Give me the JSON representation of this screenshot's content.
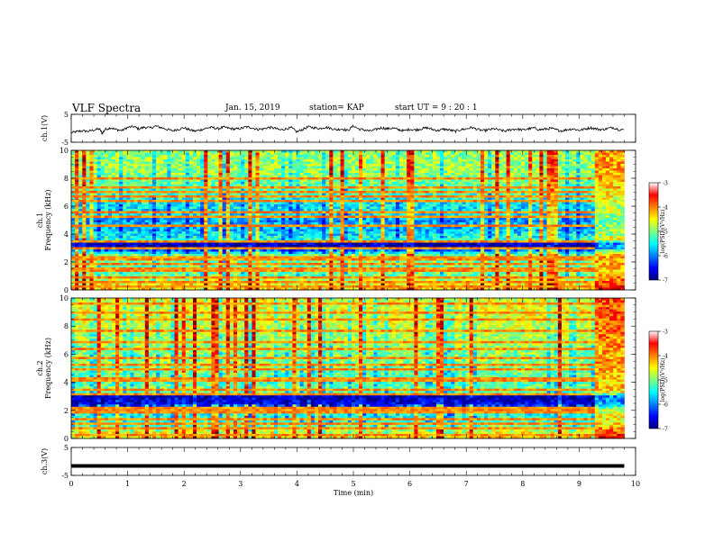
{
  "header": {
    "title": "VLF Spectra",
    "date": "Jan. 15, 2019",
    "station": "station= KAP",
    "start": "start UT =  9 : 20 : 1"
  },
  "chart_data": [
    {
      "type": "line",
      "panel": "ch1-waveform",
      "ylabel": "ch.1(V)",
      "xlim": [
        0,
        10
      ],
      "ylim": [
        -5,
        5
      ],
      "yticks": [
        "5",
        "-5"
      ],
      "note": "noisy waveform, roughly -1.5 to 0.5 V",
      "series": [
        {
          "x": [
            0.0,
            0.1,
            0.2,
            0.3,
            0.4,
            0.5,
            0.55,
            0.6,
            0.7,
            0.8,
            0.9,
            1.0,
            1.1,
            1.2,
            1.3,
            1.4,
            1.5,
            1.6,
            1.7,
            1.8,
            1.9,
            2.0,
            2.1,
            2.2,
            2.3,
            2.4,
            2.5,
            2.6,
            2.7,
            2.8,
            2.9,
            3.0,
            3.1,
            3.2,
            3.3,
            3.4,
            3.5,
            3.6,
            3.7,
            3.8,
            3.9,
            4.0,
            4.1,
            4.2,
            4.3,
            4.4,
            4.5,
            4.6,
            4.7,
            4.8,
            4.9,
            5.0,
            5.1,
            5.2,
            5.3,
            5.4,
            5.5,
            5.6,
            5.7,
            5.8,
            5.9,
            6.0,
            6.1,
            6.2,
            6.3,
            6.4,
            6.5,
            6.6,
            6.7,
            6.8,
            6.9,
            7.0,
            7.1,
            7.2,
            7.3,
            7.4,
            7.5,
            7.6,
            7.7,
            7.8,
            7.9,
            8.0,
            8.1,
            8.2,
            8.3,
            8.4,
            8.5,
            8.6,
            8.7,
            8.8,
            8.9,
            9.0,
            9.1,
            9.2,
            9.3,
            9.4,
            9.5,
            9.6,
            9.7,
            9.8
          ],
          "values": [
            -1.6,
            -1.2,
            -0.9,
            -1.1,
            -0.6,
            -0.2,
            -1.8,
            -0.4,
            0.2,
            -0.5,
            -0.8,
            0.3,
            0.6,
            -0.2,
            0.4,
            0.1,
            0.8,
            0.2,
            -0.4,
            -0.9,
            -0.3,
            0.2,
            -0.6,
            -1.0,
            -0.5,
            0.1,
            0.3,
            -0.2,
            0.4,
            0.0,
            -0.3,
            -0.1,
            0.5,
            0.2,
            -0.4,
            -0.2,
            0.3,
            0.1,
            -0.6,
            -0.2,
            0.2,
            -1.3,
            -0.4,
            0.5,
            0.2,
            -0.1,
            0.4,
            0.0,
            -0.5,
            -0.2,
            -0.8,
            0.9,
            -0.3,
            -0.6,
            -1.0,
            -0.4,
            0.2,
            -0.2,
            0.1,
            -0.5,
            -0.9,
            -0.3,
            -0.6,
            -0.2,
            0.2,
            -0.4,
            -0.8,
            -0.3,
            -0.6,
            -1.1,
            -0.5,
            -0.2,
            0.3,
            -0.4,
            -0.9,
            -0.5,
            -0.2,
            -0.7,
            -1.0,
            -0.4,
            -0.3,
            -0.6,
            -0.2,
            0.1,
            -0.5,
            -0.3,
            0.0,
            -0.6,
            -0.9,
            -0.4,
            -0.2,
            -0.7,
            -0.3,
            0.2,
            -0.2,
            -0.5,
            -0.1,
            0.3,
            -0.4,
            -0.6
          ]
        }
      ]
    },
    {
      "type": "heatmap",
      "panel": "ch1-spectrogram",
      "ylabel": "ch.1\nFrequency (kHz)",
      "xlim": [
        0,
        10
      ],
      "ylim": [
        0,
        10
      ],
      "yticks": [
        "0",
        "2",
        "4",
        "6",
        "8",
        "10"
      ],
      "data_end_min": 9.8,
      "colorbar": {
        "label": "log(PSD)(V²/Hz)",
        "range": [
          -7,
          -3
        ],
        "ticks": [
          "-3",
          "-4",
          "-5",
          "-6",
          "-7"
        ]
      },
      "frequency_profile_kHz": {
        "f": [
          0,
          0.5,
          1,
          1.5,
          2,
          2.5,
          3,
          3.3,
          3.6,
          4,
          4.5,
          5,
          5.5,
          6,
          7,
          8,
          9,
          10
        ],
        "log_psd": [
          -4.2,
          -4.5,
          -5.0,
          -5.1,
          -5.0,
          -5.0,
          -6.7,
          -6.8,
          -5.3,
          -5.6,
          -5.8,
          -5.9,
          -5.5,
          -5.6,
          -5.2,
          -5.0,
          -4.9,
          -4.9
        ]
      },
      "horizontal_lines_kHz": [
        0.3,
        0.6,
        0.9,
        1.3,
        1.6,
        1.9,
        2.2,
        2.3,
        3.0,
        3.5,
        4.6,
        5.2,
        5.6,
        6.4,
        6.7,
        7.0,
        7.4,
        8.0
      ]
    },
    {
      "type": "heatmap",
      "panel": "ch2-spectrogram",
      "ylabel": "ch.2\nFrequency (kHz)",
      "xlim": [
        0,
        10
      ],
      "ylim": [
        0,
        10
      ],
      "yticks": [
        "0",
        "2",
        "4",
        "6",
        "8",
        "10"
      ],
      "data_end_min": 9.8,
      "colorbar": {
        "label": "log(PSD)(V²/Hz)",
        "range": [
          -7,
          -3
        ],
        "ticks": [
          "-3",
          "-4",
          "-5",
          "-6",
          "-7"
        ]
      },
      "frequency_profile_kHz": {
        "f": [
          0,
          0.5,
          1,
          1.5,
          2,
          2.5,
          3,
          3.3,
          3.6,
          4,
          4.5,
          5,
          5.5,
          6,
          7,
          8,
          9,
          10
        ],
        "log_psd": [
          -4.2,
          -4.6,
          -5.2,
          -5.3,
          -5.6,
          -6.6,
          -6.8,
          -5.2,
          -5.0,
          -5.2,
          -5.1,
          -5.0,
          -4.9,
          -5.0,
          -4.8,
          -4.7,
          -4.6,
          -4.6
        ]
      },
      "horizontal_lines_kHz": [
        0.3,
        0.7,
        1.0,
        1.4,
        1.8,
        2.1,
        3.2,
        3.4,
        4.2,
        4.9,
        5.2,
        5.7,
        6.3,
        6.9,
        7.6,
        8.4,
        9.0,
        9.6
      ]
    },
    {
      "type": "line",
      "panel": "ch3-waveform",
      "ylabel": "ch.3(V)",
      "xlabel": "Time (min)",
      "xlim": [
        0,
        10
      ],
      "ylim": [
        -5,
        5
      ],
      "yticks": [
        "5",
        "-5"
      ],
      "xticks": [
        "0",
        "1",
        "2",
        "3",
        "4",
        "5",
        "6",
        "7",
        "8",
        "9",
        "10"
      ],
      "series": [
        {
          "x": [
            0,
            9.8
          ],
          "values": [
            -1.6,
            -1.6
          ]
        }
      ]
    }
  ]
}
